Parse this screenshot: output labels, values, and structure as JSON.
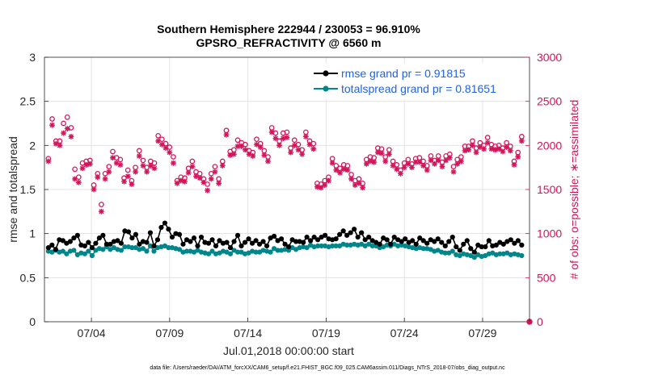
{
  "chart_data": {
    "type": "line",
    "title": "Southern Hemisphere 222944 / 230053 = 96.910%",
    "subtitle": "GPSRO_REFRACTIVITY @ 6560 m",
    "xlabel": "Jul.01,2018 00:00:00 start",
    "ylabel": "rmse and totalspread",
    "ylabel_right": "# of obs: o=possible; ∗=assimilated",
    "x_ticks": [
      "07/04",
      "07/09",
      "07/14",
      "07/19",
      "07/24",
      "07/29"
    ],
    "x_tick_days": [
      3,
      8,
      13,
      18,
      23,
      28
    ],
    "xlim": [
      0.0,
      31.0
    ],
    "ylim": [
      0,
      3
    ],
    "y_ticks": [
      "0",
      "0.5",
      "1",
      "1.5",
      "2",
      "2.5",
      "3"
    ],
    "ylim_right": [
      0,
      3000
    ],
    "y_ticks_right": [
      "0",
      "500",
      "1000",
      "1500",
      "2000",
      "2500",
      "3000"
    ],
    "grid": true,
    "legend_position": "top-right",
    "footer": "data file: /Users/raeder/DAI/ATM_forcXX/CAM6_setup/f.e21.FHIST_BGC.f09_025.CAM6assim.011/Diags_NTrS_2018-07/obs_diag_output.nc",
    "colors": {
      "rmse": "#000000",
      "spread": "#00868b",
      "obs": "#d4145a",
      "grid": "#e3e3e3",
      "legend_text": "#1f63e6"
    },
    "series": [
      {
        "name": "rmse grand pr = 0.91815",
        "marker": "filled-circle",
        "axis": "left",
        "values": [
          0.84,
          0.87,
          0.82,
          0.93,
          0.92,
          0.89,
          0.91,
          0.95,
          0.98,
          0.87,
          0.86,
          0.9,
          0.84,
          0.89,
          0.95,
          0.98,
          0.88,
          0.88,
          0.91,
          0.92,
          0.89,
          1.03,
          1.02,
          0.95,
          0.99,
          0.88,
          0.91,
          0.9,
          1.01,
          0.86,
          0.93,
          1.07,
          1.12,
          1.05,
          0.96,
          1.0,
          0.99,
          0.88,
          0.93,
          0.91,
          0.95,
          0.86,
          0.96,
          0.9,
          0.89,
          0.93,
          0.86,
          0.92,
          0.89,
          0.9,
          0.84,
          0.91,
          0.98,
          0.86,
          0.9,
          0.94,
          0.89,
          0.92,
          0.88,
          0.91,
          0.86,
          0.95,
          0.97,
          0.92,
          0.94,
          0.88,
          0.85,
          0.93,
          0.91,
          0.91,
          0.9,
          0.96,
          0.92,
          0.96,
          0.93,
          0.96,
          0.98,
          0.94,
          0.93,
          0.94,
          0.99,
          1.03,
          0.98,
          1.01,
          1.05,
          0.96,
          1.01,
          0.93,
          0.96,
          0.92,
          0.9,
          0.88,
          0.95,
          0.93,
          0.88,
          0.96,
          0.93,
          0.91,
          0.94,
          0.9,
          0.92,
          0.88,
          0.95,
          0.92,
          0.89,
          0.93,
          0.91,
          0.94,
          0.9,
          0.86,
          0.91,
          0.96,
          0.85,
          0.81,
          0.88,
          0.92,
          0.83,
          0.79,
          0.87,
          0.85,
          0.85,
          0.92,
          0.86,
          0.87,
          0.9,
          0.88,
          0.91,
          0.93,
          0.89,
          0.92,
          0.87
        ]
      },
      {
        "name": "totalspread grand pr = 0.81651",
        "marker": "filled-circle",
        "axis": "left",
        "values": [
          0.8,
          0.79,
          0.81,
          0.79,
          0.8,
          0.77,
          0.8,
          0.81,
          0.76,
          0.78,
          0.77,
          0.8,
          0.75,
          0.81,
          0.83,
          0.82,
          0.85,
          0.82,
          0.84,
          0.82,
          0.81,
          0.85,
          0.85,
          0.84,
          0.84,
          0.82,
          0.83,
          0.8,
          0.86,
          0.8,
          0.84,
          0.85,
          0.86,
          0.84,
          0.84,
          0.83,
          0.82,
          0.79,
          0.8,
          0.8,
          0.79,
          0.81,
          0.79,
          0.78,
          0.77,
          0.8,
          0.77,
          0.78,
          0.8,
          0.79,
          0.77,
          0.81,
          0.79,
          0.79,
          0.77,
          0.78,
          0.8,
          0.79,
          0.79,
          0.81,
          0.8,
          0.79,
          0.83,
          0.81,
          0.81,
          0.82,
          0.81,
          0.84,
          0.82,
          0.84,
          0.85,
          0.84,
          0.87,
          0.85,
          0.86,
          0.86,
          0.86,
          0.85,
          0.86,
          0.86,
          0.86,
          0.88,
          0.87,
          0.87,
          0.88,
          0.87,
          0.88,
          0.86,
          0.88,
          0.86,
          0.86,
          0.84,
          0.85,
          0.87,
          0.86,
          0.88,
          0.86,
          0.87,
          0.86,
          0.85,
          0.84,
          0.83,
          0.84,
          0.83,
          0.83,
          0.82,
          0.8,
          0.81,
          0.79,
          0.78,
          0.78,
          0.8,
          0.76,
          0.75,
          0.77,
          0.76,
          0.75,
          0.73,
          0.76,
          0.74,
          0.75,
          0.77,
          0.78,
          0.76,
          0.77,
          0.77,
          0.78,
          0.76,
          0.77,
          0.76,
          0.75
        ]
      },
      {
        "name": "possible",
        "marker": "open-circle",
        "axis": "right",
        "values": [
          1850,
          2300,
          2050,
          2050,
          2250,
          2320,
          2200,
          1730,
          1640,
          1800,
          1820,
          1830,
          1550,
          1680,
          1330,
          1680,
          1760,
          1930,
          1860,
          1840,
          1630,
          1720,
          1600,
          1750,
          1940,
          1830,
          1750,
          1820,
          1800,
          2110,
          2070,
          2020,
          1980,
          1870,
          1600,
          1640,
          1630,
          1740,
          1820,
          1700,
          1680,
          1620,
          1560,
          1680,
          1760,
          1620,
          1820,
          2170,
          1930,
          1950,
          2060,
          2030,
          2010,
          1940,
          1920,
          2070,
          2020,
          1940,
          1870,
          2200,
          2140,
          2050,
          2140,
          2150,
          1970,
          2060,
          2010,
          1950,
          2150,
          2050,
          2020,
          1570,
          1560,
          1600,
          1640,
          1850,
          1770,
          1740,
          1780,
          1770,
          1670,
          1600,
          1620,
          1570,
          1840,
          1870,
          1860,
          1970,
          1960,
          1870,
          1950,
          1820,
          1780,
          1720,
          1800,
          1840,
          1790,
          1850,
          1860,
          1820,
          1770,
          1880,
          1830,
          1880,
          1810,
          1880,
          1900,
          1760,
          1840,
          1870,
          1990,
          1990,
          2050,
          1970,
          2030,
          2000,
          2090,
          2010,
          1990,
          2000,
          1970,
          2030,
          1990,
          1820,
          1920,
          2100
        ]
      },
      {
        "name": "assimilated",
        "marker": "asterisk",
        "axis": "right",
        "values": [
          1820,
          2230,
          2020,
          2000,
          2140,
          2190,
          2100,
          1620,
          1580,
          1740,
          1780,
          1790,
          1500,
          1640,
          1250,
          1620,
          1700,
          1860,
          1800,
          1780,
          1590,
          1650,
          1560,
          1700,
          1880,
          1770,
          1700,
          1770,
          1740,
          2050,
          2010,
          1970,
          1920,
          1800,
          1570,
          1600,
          1590,
          1690,
          1760,
          1650,
          1630,
          1580,
          1490,
          1620,
          1700,
          1570,
          1770,
          2120,
          1890,
          1900,
          1990,
          1990,
          1950,
          1900,
          1880,
          2010,
          1980,
          1890,
          1820,
          2150,
          2080,
          2000,
          2080,
          2090,
          1920,
          2000,
          1950,
          1900,
          2100,
          2010,
          1960,
          1530,
          1520,
          1550,
          1600,
          1800,
          1720,
          1690,
          1730,
          1720,
          1620,
          1550,
          1570,
          1520,
          1790,
          1820,
          1810,
          1920,
          1910,
          1820,
          1900,
          1770,
          1730,
          1680,
          1750,
          1790,
          1750,
          1810,
          1810,
          1770,
          1720,
          1830,
          1790,
          1830,
          1760,
          1830,
          1860,
          1700,
          1790,
          1820,
          1940,
          1950,
          2000,
          1920,
          1980,
          1960,
          2030,
          1960,
          1950,
          1960,
          1930,
          1980,
          1940,
          1780,
          1870,
          2050
        ]
      }
    ],
    "last_point_obs": {
      "possible": 0,
      "assimilated": 0
    }
  }
}
